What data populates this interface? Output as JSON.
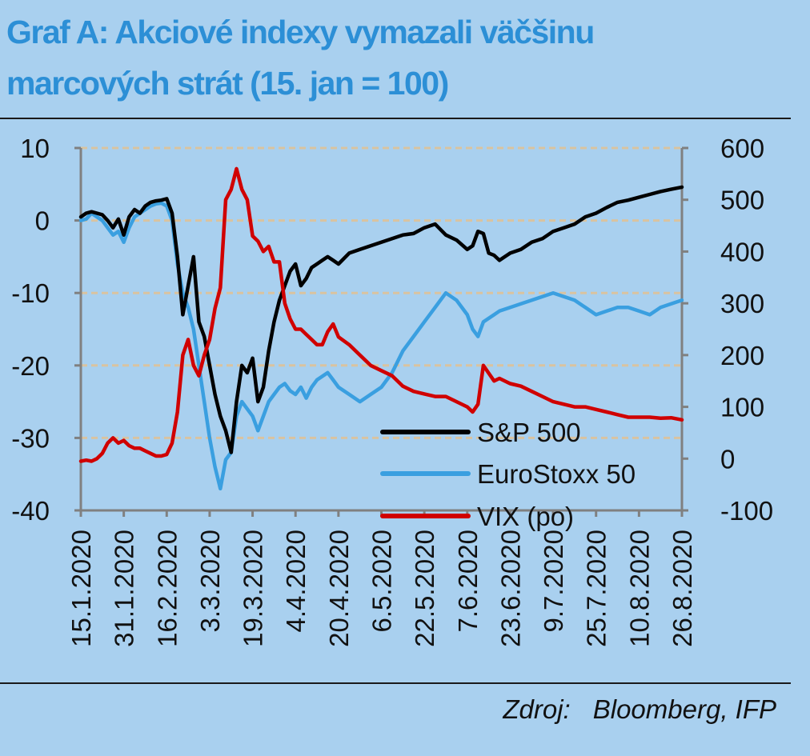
{
  "title_line1": "Graf A:  Akciové indexy vymazali väčšinu",
  "title_line2": "marcových strát (15. jan = 100)",
  "source_label": "Zdroj:",
  "source_value": "Bloomberg, IFP",
  "chart_data": {
    "type": "line",
    "x_categories": [
      "15.1.2020",
      "31.1.2020",
      "16.2.2020",
      "3.3.2020",
      "19.3.2020",
      "4.4.2020",
      "20.4.2020",
      "6.5.2020",
      "22.5.2020",
      "7.6.2020",
      "23.6.2020",
      "9.7.2020",
      "25.7.2020",
      "10.8.2020",
      "26.8.2020"
    ],
    "y_left": {
      "min": -40,
      "max": 10,
      "ticks": [
        10,
        0,
        -10,
        -20,
        -30,
        -40
      ]
    },
    "y_right": {
      "min": -100,
      "max": 600,
      "ticks": [
        600,
        500,
        400,
        300,
        200,
        100,
        0,
        -100
      ]
    },
    "grid": "horizontal dashed",
    "legend_position": "bottom-center",
    "colors": {
      "sp500": "#000000",
      "eurostoxx": "#3a9fe0",
      "vix": "#d00000",
      "grid": "#d9c3a0",
      "axis": "#808080"
    },
    "series": [
      {
        "name": "S&P 500",
        "axis": "left",
        "color": "#000000",
        "x": [
          0,
          0.125,
          0.25,
          0.375,
          0.5,
          0.625,
          0.75,
          0.875,
          1,
          1.125,
          1.25,
          1.375,
          1.5,
          1.625,
          1.75,
          1.875,
          2,
          2.125,
          2.25,
          2.375,
          2.5,
          2.625,
          2.75,
          2.875,
          3,
          3.125,
          3.25,
          3.375,
          3.5,
          3.625,
          3.75,
          3.875,
          4,
          4.125,
          4.25,
          4.375,
          4.5,
          4.625,
          4.75,
          4.875,
          5,
          5.125,
          5.25,
          5.375,
          5.5,
          5.625,
          5.75,
          5.875,
          6,
          6.25,
          6.5,
          6.75,
          7,
          7.25,
          7.5,
          7.75,
          8,
          8.25,
          8.5,
          8.75,
          9,
          9.125,
          9.25,
          9.375,
          9.5,
          9.625,
          9.75,
          10,
          10.25,
          10.5,
          10.75,
          11,
          11.25,
          11.5,
          11.75,
          12,
          12.25,
          12.5,
          12.75,
          13,
          13.25,
          13.5,
          13.75,
          14
        ],
        "y": [
          0.5,
          1,
          1.2,
          1,
          0.8,
          0,
          -1,
          0.2,
          -2,
          0.5,
          1.5,
          1,
          2,
          2.5,
          2.7,
          2.8,
          3,
          1,
          -5,
          -13,
          -9,
          -5,
          -14,
          -16,
          -20,
          -24,
          -27,
          -29,
          -32,
          -25,
          -20,
          -21,
          -19,
          -25,
          -23,
          -18,
          -14,
          -11,
          -9,
          -7,
          -6,
          -9,
          -8,
          -6.5,
          -6,
          -5.5,
          -5,
          -5.5,
          -6,
          -4.5,
          -4,
          -3.5,
          -3,
          -2.5,
          -2,
          -1.8,
          -1,
          -0.5,
          -2,
          -2.7,
          -4,
          -3.5,
          -1.5,
          -1.8,
          -4.5,
          -4.8,
          -5.5,
          -4.5,
          -4,
          -3,
          -2.5,
          -1.5,
          -1,
          -0.5,
          0.5,
          1,
          1.8,
          2.5,
          2.8,
          3.2,
          3.6,
          4,
          4.3,
          4.6
        ]
      },
      {
        "name": "EuroStoxx 50",
        "axis": "left",
        "color": "#3a9fe0",
        "x": [
          0,
          0.125,
          0.25,
          0.375,
          0.5,
          0.625,
          0.75,
          0.875,
          1,
          1.125,
          1.25,
          1.375,
          1.5,
          1.625,
          1.75,
          1.875,
          2,
          2.125,
          2.25,
          2.375,
          2.5,
          2.625,
          2.75,
          2.875,
          3,
          3.125,
          3.25,
          3.375,
          3.5,
          3.625,
          3.75,
          3.875,
          4,
          4.125,
          4.25,
          4.375,
          4.5,
          4.625,
          4.75,
          4.875,
          5,
          5.125,
          5.25,
          5.375,
          5.5,
          5.625,
          5.75,
          5.875,
          6,
          6.25,
          6.5,
          6.75,
          7,
          7.25,
          7.5,
          7.75,
          8,
          8.25,
          8.5,
          8.75,
          9,
          9.125,
          9.25,
          9.375,
          9.5,
          9.625,
          9.75,
          10,
          10.25,
          10.5,
          10.75,
          11,
          11.25,
          11.5,
          11.75,
          12,
          12.25,
          12.5,
          12.75,
          13,
          13.25,
          13.5,
          13.75,
          14
        ],
        "y": [
          0,
          0.2,
          1,
          0.5,
          0,
          -1,
          -2,
          -1.5,
          -3,
          -1,
          0.5,
          1,
          1.5,
          2,
          2.3,
          2.4,
          2,
          0,
          -6,
          -10,
          -12,
          -15,
          -20,
          -25,
          -30,
          -34,
          -37,
          -33,
          -32,
          -27,
          -25,
          -26,
          -27,
          -29,
          -27,
          -25,
          -24,
          -23,
          -22.5,
          -23.5,
          -24,
          -23,
          -24.5,
          -23,
          -22,
          -21.5,
          -21,
          -22,
          -23,
          -24,
          -25,
          -24,
          -23,
          -21,
          -18,
          -16,
          -14,
          -12,
          -10,
          -11,
          -13,
          -15,
          -16,
          -14,
          -13.5,
          -13,
          -12.5,
          -12,
          -11.5,
          -11,
          -10.5,
          -10,
          -10.5,
          -11,
          -12,
          -13,
          -12.5,
          -12,
          -12,
          -12.5,
          -13,
          -12,
          -11.5,
          -11
        ]
      },
      {
        "name": "VIX (po)",
        "axis": "right",
        "color": "#d00000",
        "x": [
          0,
          0.125,
          0.25,
          0.375,
          0.5,
          0.625,
          0.75,
          0.875,
          1,
          1.125,
          1.25,
          1.375,
          1.5,
          1.625,
          1.75,
          1.875,
          2,
          2.125,
          2.25,
          2.375,
          2.5,
          2.625,
          2.75,
          2.875,
          3,
          3.125,
          3.25,
          3.375,
          3.5,
          3.625,
          3.75,
          3.875,
          4,
          4.125,
          4.25,
          4.375,
          4.5,
          4.625,
          4.75,
          4.875,
          5,
          5.125,
          5.25,
          5.375,
          5.5,
          5.625,
          5.75,
          5.875,
          6,
          6.25,
          6.5,
          6.75,
          7,
          7.25,
          7.5,
          7.75,
          8,
          8.25,
          8.5,
          8.75,
          9,
          9.125,
          9.25,
          9.375,
          9.5,
          9.625,
          9.75,
          10,
          10.25,
          10.5,
          10.75,
          11,
          11.25,
          11.5,
          11.75,
          12,
          12.25,
          12.5,
          12.75,
          13,
          13.25,
          13.5,
          13.75,
          14
        ],
        "y": [
          -5,
          -3,
          -5,
          0,
          10,
          30,
          40,
          30,
          35,
          25,
          20,
          20,
          15,
          10,
          5,
          5,
          8,
          30,
          90,
          200,
          230,
          180,
          160,
          200,
          230,
          290,
          330,
          500,
          520,
          560,
          520,
          500,
          430,
          420,
          400,
          410,
          380,
          380,
          300,
          270,
          250,
          250,
          240,
          230,
          220,
          220,
          245,
          260,
          235,
          220,
          200,
          180,
          170,
          160,
          140,
          130,
          125,
          120,
          120,
          110,
          100,
          90,
          105,
          180,
          165,
          150,
          155,
          145,
          140,
          130,
          120,
          110,
          105,
          100,
          100,
          95,
          90,
          85,
          80,
          80,
          80,
          78,
          79,
          75
        ]
      }
    ]
  }
}
